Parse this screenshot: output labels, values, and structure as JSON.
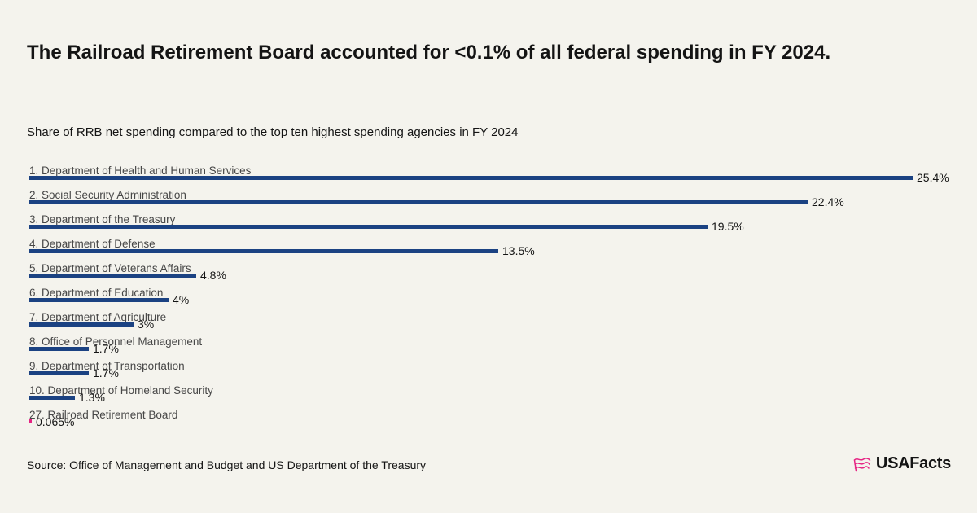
{
  "header": {
    "title": "The Railroad Retirement Board accounted for <0.1% of all federal spending in FY 2024.",
    "subtitle": "Share of RRB net spending compared to the top ten highest spending agencies in FY 2024"
  },
  "chart_data": {
    "type": "bar",
    "orientation": "horizontal",
    "title": "Share of RRB net spending compared to the top ten highest spending agencies in FY 2024",
    "unit": "%",
    "xlim": [
      0,
      27.2
    ],
    "grid": false,
    "bar_color": "#1b4282",
    "highlight_color": "#e62383",
    "highlight_index": 10,
    "categories": [
      "1. Department of Health and Human Services",
      "2. Social Security Administration",
      "3. Department of the Treasury",
      "4. Department of Defense",
      "5. Department of Veterans Affairs",
      "6. Department of Education",
      "7. Department of Agriculture",
      "8. Office of Personnel Management",
      "9. Department of Transportation",
      "10. Department of Homeland Security",
      "27. Railroad Retirement Board"
    ],
    "values": [
      25.4,
      22.4,
      19.5,
      13.5,
      4.8,
      4,
      3,
      1.7,
      1.7,
      1.3,
      0.065
    ],
    "value_labels": [
      "25.4%",
      "22.4%",
      "19.5%",
      "13.5%",
      "4.8%",
      "4%",
      "3%",
      "1.7%",
      "1.7%",
      "1.3%",
      "0.065%"
    ]
  },
  "footer": {
    "source": "Source: Office of Management and Budget and US Department of the Treasury",
    "logo_text": "USAFacts"
  }
}
